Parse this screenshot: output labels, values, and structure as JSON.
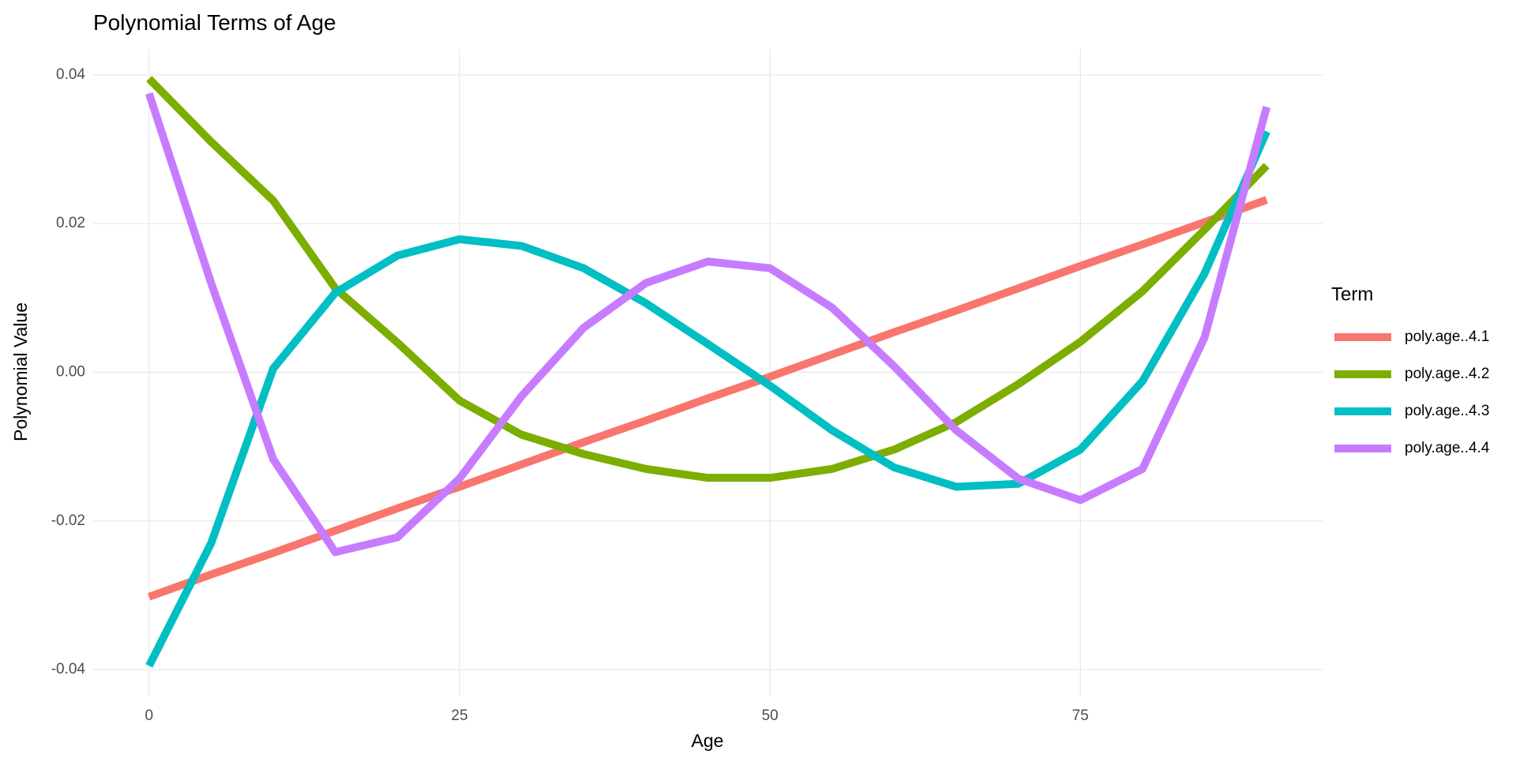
{
  "chart_data": {
    "type": "line",
    "title": "Polynomial Terms of Age",
    "x_label": "Age",
    "y_label": "Polynomial Value",
    "legend_title": "Term",
    "legend_position": "right",
    "grid": true,
    "xlim": [
      -4.5,
      94.5
    ],
    "ylim": [
      -0.0435,
      0.0435
    ],
    "xticks": [
      0,
      25,
      50,
      75
    ],
    "yticks": [
      -0.04,
      -0.02,
      {
        "value": 0,
        "label": "0.00"
      },
      0.02,
      0.04
    ],
    "x": [
      0,
      5,
      10,
      15,
      20,
      25,
      30,
      35,
      40,
      45,
      50,
      55,
      60,
      65,
      70,
      75,
      80,
      85,
      90
    ],
    "series": [
      {
        "name": "poly.age..4.1",
        "color": "#F8766D",
        "values": [
          -0.0302,
          -0.0272,
          -0.0243,
          -0.0213,
          -0.0183,
          -0.0154,
          -0.0124,
          -0.0094,
          -0.0065,
          -0.0035,
          -0.0006,
          0.0024,
          0.0054,
          0.0083,
          0.0113,
          0.0143,
          0.0172,
          0.0202,
          0.0232
        ]
      },
      {
        "name": "poly.age..4.2",
        "color": "#7CAE00",
        "values": [
          0.0395,
          0.031,
          0.0231,
          0.0113,
          0.004,
          -0.0038,
          -0.0084,
          -0.011,
          -0.013,
          -0.0142,
          -0.0142,
          -0.013,
          -0.0104,
          -0.0067,
          -0.0016,
          0.0041,
          0.0109,
          0.0192,
          0.0278
        ]
      },
      {
        "name": "poly.age..4.3",
        "color": "#00BFC4",
        "values": [
          -0.0395,
          -0.023,
          0.0005,
          0.0107,
          0.0157,
          0.0179,
          0.017,
          0.014,
          0.0093,
          0.0038,
          -0.0018,
          -0.0078,
          -0.0128,
          -0.0154,
          -0.015,
          -0.0104,
          -0.0012,
          0.0133,
          0.0324
        ]
      },
      {
        "name": "poly.age..4.4",
        "color": "#C77CFF",
        "values": [
          0.0375,
          0.012,
          -0.0117,
          -0.0242,
          -0.0222,
          -0.0143,
          -0.0032,
          0.006,
          0.012,
          0.0149,
          0.014,
          0.0087,
          0.0008,
          -0.0078,
          -0.0143,
          -0.0172,
          -0.013,
          0.0047,
          0.0357
        ]
      }
    ]
  }
}
